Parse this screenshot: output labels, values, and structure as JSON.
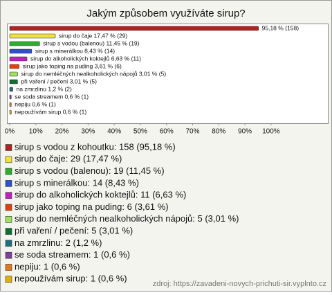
{
  "chart_data": {
    "type": "bar",
    "orientation": "horizontal",
    "title": "Jakým způsobem využíváte sirup?",
    "categories": [
      "sirup s vodou z kohoutku",
      "sirup do čaje",
      "sirup s vodou (balenou)",
      "sirup s minerálkou",
      "sirup do alkoholických koktejlů",
      "sirup jako toping na puding",
      "sirup do nemléčných nealkoholických nápojů",
      "při vaření / pečení",
      "na zmrzlinu",
      "se soda streamem",
      "nepiju",
      "nepoužívám sirup"
    ],
    "values": [
      95.18,
      17.47,
      11.45,
      8.43,
      6.63,
      3.61,
      3.01,
      3.01,
      1.2,
      0.6,
      0.6,
      0.6
    ],
    "value_labels": [
      "95,18 % (158)",
      "sirup do čaje 17,47 % (29)",
      "sirup s vodou (balenou) 11,45 % (19)",
      "sirup s minerálkou 8,43 % (14)",
      "sirup do alkoholických koktejlů 6,63 % (11)",
      "sirup jako toping na puding 3,61 % (6)",
      "sirup do nemléčných nealkoholických nápojů 3,01 % (5)",
      "při vaření / pečení 3,01 % (5)",
      "na zmrzlinu 1,2 % (2)",
      "se soda streamem 0,6 % (1)",
      "nepiju 0,6 % (1)",
      "nepoužívám sirup 0,6 % (1)"
    ],
    "legend_labels": [
      "sirup s vodou z kohoutku: 158 (95,18 %)",
      "sirup do čaje: 29 (17,47 %)",
      "sirup s vodou (balenou): 19 (11,45 %)",
      "sirup s minerálkou: 14 (8,43 %)",
      "sirup do alkoholických koktejlů: 11 (6,63 %)",
      "sirup jako toping na puding: 6 (3,61 %)",
      "sirup do nemléčných nealkoholických nápojů: 5 (3,01 %)",
      "při vaření / pečení: 5 (3,01 %)",
      "na zmrzlinu: 2 (1,2 %)",
      "se soda streamem: 1 (0,6 %)",
      "nepiju: 1 (0,6 %)",
      "nepoužívám sirup: 1 (0,6 %)"
    ],
    "colors": [
      "#b22222",
      "#f0e040",
      "#2ab02a",
      "#3050d0",
      "#c020c0",
      "#e04010",
      "#a0e060",
      "#107030",
      "#207080",
      "#8040a0",
      "#e07820",
      "#e0b000"
    ],
    "xlim": [
      0,
      122
    ],
    "xticks": [
      {
        "value": 0,
        "label": "0%"
      },
      {
        "value": 10,
        "label": "10%"
      },
      {
        "value": 20,
        "label": "20%"
      },
      {
        "value": 30,
        "label": "30%"
      },
      {
        "value": 40,
        "label": "40%"
      },
      {
        "value": 50,
        "label": "50%"
      },
      {
        "value": 60,
        "label": "60%"
      },
      {
        "value": 70,
        "label": "70%"
      },
      {
        "value": 80,
        "label": "80%"
      },
      {
        "value": 90,
        "label": "90%"
      },
      {
        "value": 100,
        "label": "100%"
      }
    ],
    "source": "zdroj: https://zavadeni-novych-prichuti-sir.vyplnto.cz"
  }
}
